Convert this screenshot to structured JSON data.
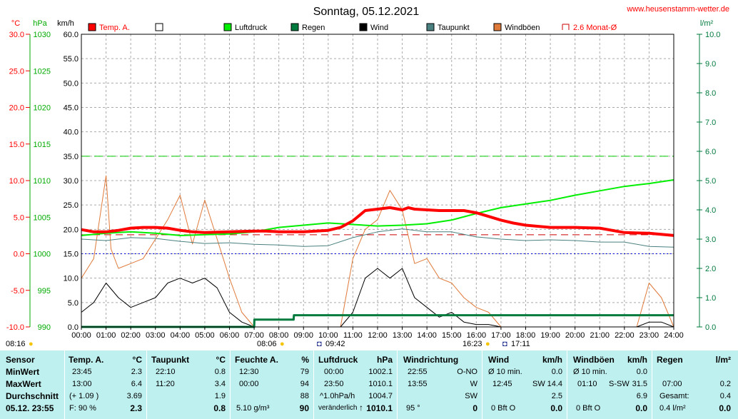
{
  "header": {
    "title": "Sonntag, 05.12.2021",
    "website": "www.heusenstamm-wetter.de"
  },
  "axes": {
    "unit_temp": "°C",
    "unit_press": "hPa",
    "unit_wind": "km/h",
    "unit_rain": "l/m²",
    "temp_ticks": [
      "30.0",
      "25.0",
      "20.0",
      "15.0",
      "10.0",
      "5.0",
      "0.0",
      "-5.0",
      "-10.0"
    ],
    "press_ticks": [
      "1030",
      "1025",
      "1020",
      "1015",
      "1010",
      "1005",
      "1000",
      "995",
      "990"
    ],
    "wind_ticks": [
      "60.0",
      "55.0",
      "50.0",
      "45.0",
      "40.0",
      "35.0",
      "30.0",
      "25.0",
      "20.0",
      "15.0",
      "10.0",
      "5.0",
      "0.0"
    ],
    "rain_ticks": [
      "10.0",
      "9.0",
      "8.0",
      "7.0",
      "6.0",
      "5.0",
      "4.0",
      "3.0",
      "2.0",
      "1.0",
      "0.0"
    ],
    "time_ticks": [
      "00:00",
      "01:00",
      "02:00",
      "03:00",
      "04:00",
      "05:00",
      "06:00",
      "07:00",
      "08:00",
      "09:00",
      "10:00",
      "11:00",
      "12:00",
      "13:00",
      "14:00",
      "15:00",
      "16:00",
      "17:00",
      "18:00",
      "19:00",
      "20:00",
      "21:00",
      "22:00",
      "23:00",
      "24:00"
    ]
  },
  "legend": [
    {
      "label": "Temp. A.",
      "color": "#ff0000"
    },
    {
      "label": "",
      "color": "#ffffff"
    },
    {
      "label": "Luftdruck",
      "color": "#00ee00"
    },
    {
      "label": "Regen",
      "color": "#007a3d"
    },
    {
      "label": "Wind",
      "color": "#000000"
    },
    {
      "label": "Taupunkt",
      "color": "#4a8080"
    },
    {
      "label": "Windböen",
      "color": "#e07a3a"
    },
    {
      "label": "2.6 Monat-Ø",
      "color": "#cc0000"
    }
  ],
  "sun": {
    "sunrise": "08:16",
    "noon": "08:06",
    "moon": "09:42",
    "sunset": "16:23",
    "moonset": "17:11"
  },
  "chart_data": {
    "type": "line",
    "x_label": "",
    "x_range": [
      "00:00",
      "24:00"
    ],
    "temp_axis": {
      "unit": "°C",
      "range": [
        -10,
        30
      ]
    },
    "pressure_axis": {
      "unit": "hPa",
      "range": [
        990,
        1030
      ]
    },
    "wind_axis": {
      "unit": "km/h",
      "range": [
        0,
        60
      ]
    },
    "rain_axis": {
      "unit": "l/m²",
      "range": [
        0,
        10
      ]
    },
    "reference_lines": [
      {
        "name": "2.6 Monat-Ø",
        "axis": "temp",
        "value": 2.6
      },
      {
        "name": "",
        "axis": "wind",
        "value": 35
      },
      {
        "name": "",
        "axis": "wind",
        "value": 15
      }
    ],
    "series": [
      {
        "name": "Temp. A.",
        "axis": "temp",
        "color": "#ff0000",
        "x": [
          0,
          0.5,
          1,
          1.5,
          2,
          2.5,
          3,
          3.5,
          4,
          4.5,
          5,
          6,
          7,
          7.5,
          8,
          9,
          10,
          10.5,
          11,
          11.5,
          12,
          12.5,
          13,
          13.25,
          13.5,
          14,
          14.5,
          15,
          15.5,
          16,
          16.5,
          17,
          17.5,
          18,
          19,
          20,
          21,
          22,
          23,
          24
        ],
        "y": [
          3.3,
          3.0,
          3.0,
          3.2,
          3.5,
          3.6,
          3.6,
          3.5,
          3.2,
          3.0,
          2.9,
          3.0,
          3.1,
          3.1,
          3.0,
          3.0,
          3.2,
          3.6,
          4.5,
          5.9,
          6.1,
          6.3,
          6.0,
          6.3,
          6.1,
          6.0,
          5.9,
          5.9,
          5.9,
          5.6,
          5.1,
          4.6,
          4.2,
          3.9,
          3.6,
          3.6,
          3.5,
          2.9,
          2.8,
          2.5
        ]
      },
      {
        "name": "Taupunkt",
        "axis": "temp",
        "color": "#4a8080",
        "x": [
          0,
          1,
          2,
          3,
          4,
          5,
          6,
          7,
          8,
          9,
          10,
          11,
          12,
          13,
          14,
          15,
          16,
          17,
          18,
          19,
          20,
          21,
          22,
          23,
          24
        ],
        "y": [
          2.0,
          1.8,
          2.2,
          2.1,
          1.7,
          1.4,
          1.5,
          1.3,
          1.2,
          1.0,
          1.1,
          2.2,
          3.0,
          3.4,
          3.0,
          3.0,
          2.3,
          2.0,
          1.8,
          1.9,
          1.8,
          1.6,
          1.6,
          1.0,
          0.9
        ]
      },
      {
        "name": "Luftdruck",
        "axis": "pressure",
        "color": "#00ee00",
        "x": [
          0,
          1,
          2,
          3,
          4,
          5,
          6,
          7,
          8,
          9,
          10,
          11,
          12,
          13,
          14,
          15,
          16,
          17,
          18,
          19,
          20,
          21,
          22,
          23,
          24
        ],
        "y": [
          1002.5,
          1002.8,
          1003.0,
          1002.8,
          1002.5,
          1002.6,
          1002.7,
          1003.0,
          1003.6,
          1003.9,
          1004.2,
          1004.0,
          1003.8,
          1003.9,
          1004.1,
          1004.6,
          1005.5,
          1006.3,
          1006.8,
          1007.3,
          1008.0,
          1008.6,
          1009.2,
          1009.6,
          1010.1
        ]
      },
      {
        "name": "Wind",
        "axis": "wind",
        "color": "#000000",
        "x": [
          0,
          0.5,
          1,
          1.5,
          2,
          2.5,
          3,
          3.5,
          4,
          4.5,
          5,
          5.5,
          6,
          6.5,
          7,
          10.5,
          11,
          11.5,
          12,
          12.5,
          13,
          13.5,
          14,
          14.5,
          15,
          15.5,
          16,
          16.5,
          17,
          22.5,
          23,
          23.5,
          24
        ],
        "y": [
          3,
          5,
          9,
          6,
          4,
          5,
          6,
          9,
          10,
          9,
          10,
          8,
          3,
          1,
          0,
          0,
          3,
          10,
          12,
          10,
          12,
          6,
          4,
          2,
          3,
          1,
          0.5,
          0.5,
          0,
          0,
          1,
          1,
          0
        ]
      },
      {
        "name": "Windböen",
        "axis": "wind",
        "color": "#e07a3a",
        "x": [
          0,
          0.5,
          1,
          1.2,
          1.5,
          2,
          2.5,
          3,
          3.5,
          4,
          4.5,
          5,
          5.5,
          6,
          6.5,
          7,
          10.5,
          11,
          11.5,
          12,
          12.5,
          13,
          13.5,
          14,
          14.5,
          15,
          15.5,
          16,
          16.5,
          17,
          22.5,
          23,
          23.5,
          24
        ],
        "y": [
          10,
          14,
          31,
          16,
          12,
          13,
          14,
          18,
          22,
          27,
          17,
          26,
          18,
          10,
          3,
          0,
          0,
          14,
          20,
          22,
          28,
          24,
          13,
          14,
          10,
          9,
          6,
          4,
          3,
          0,
          0,
          9,
          6,
          0
        ]
      },
      {
        "name": "Regen",
        "axis": "rain",
        "color": "#007a3d",
        "x": [
          0,
          7,
          7.01,
          8.6,
          8.61,
          24
        ],
        "y": [
          0,
          0,
          0.25,
          0.25,
          0.4,
          0.4
        ]
      }
    ]
  },
  "stats": {
    "sensor": {
      "header": "Sensor",
      "min": "MinWert",
      "max": "MaxWert",
      "avg": "Durchschnitt",
      "date": "05.12. 23:55"
    },
    "temp": {
      "header": "Temp. A.",
      "unit": "°C",
      "min_time": "23:45",
      "min": "2.3",
      "max_time": "13:00",
      "max": "6.4",
      "avg_note": "(+ 1.09 )",
      "avg": "3.69",
      "foot_note": "F: 90 %",
      "foot": "2.3"
    },
    "dew": {
      "header": "Taupunkt",
      "unit": "°C",
      "min_time": "22:10",
      "min": "0.8",
      "max_time": "11:20",
      "max": "3.4",
      "avg": "1.9",
      "foot": "0.8"
    },
    "hum": {
      "header": "Feuchte A.",
      "unit": "%",
      "min_time": "12:30",
      "min": "79",
      "max_time": "00:00",
      "max": "94",
      "avg": "88",
      "foot_note": "5.10 g/m³",
      "foot": "90"
    },
    "press": {
      "header": "Luftdruck",
      "unit": "hPa",
      "min_time": "00:00",
      "min": "1002.1",
      "max_time": "23:50",
      "max": "1010.1",
      "avg_note": "^1.0hPa/h",
      "avg": "1004.7",
      "foot_note": "veränderlich",
      "foot_arrow": "↑",
      "foot": "1010.1"
    },
    "dir": {
      "header": "Windrichtung",
      "min_time": "22:55",
      "min": "O-NO",
      "max_time": "13:55",
      "max": "W",
      "avg": "SW",
      "foot_note": "95 °",
      "foot": "0"
    },
    "wind": {
      "header": "Wind",
      "unit": "km/h",
      "min_time": "Ø 10 min.",
      "min": "0.0",
      "max_time": "12:45",
      "max_dir": "SW",
      "max": "14.4",
      "avg": "2.5",
      "foot_note": "0 Bft O",
      "foot": "0.0"
    },
    "gust": {
      "header": "Windböen",
      "unit": "km/h",
      "min_time": "Ø 10 min.",
      "min": "0.0",
      "max_time": "01:10",
      "max_dir": "S-SW",
      "max": "31.5",
      "avg": "6.9",
      "foot_note": "0 Bft O",
      "foot": "0.0"
    },
    "rain": {
      "header": "Regen",
      "unit": "l/m²",
      "r1_label": "07:00",
      "r1": "0.2",
      "r2_label": "Gesamt:",
      "r2": "0.4",
      "foot_note": "0.4 l/m²",
      "foot": "0.0"
    }
  }
}
